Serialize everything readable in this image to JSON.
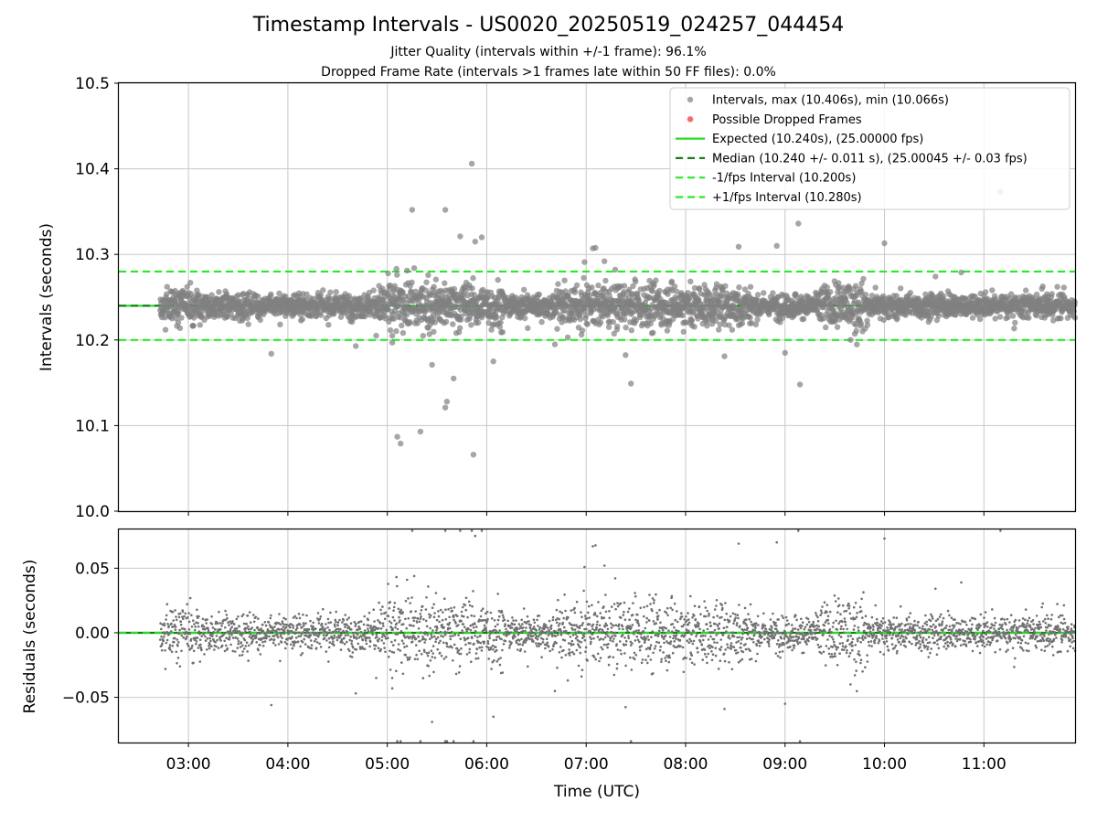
{
  "title": "Timestamp Intervals - US0020_20250519_024257_044454",
  "subtitle_1": "Jitter Quality (intervals within +/-1 frame): 96.1%",
  "subtitle_2": "Dropped Frame Rate (intervals >1 frames late within 50 FF files): 0.0%",
  "colors": {
    "points": "#808080",
    "residual_points": "#707070",
    "dropped": "#ff4d4d",
    "expected": "#22dd22",
    "median": "#1a7a1a",
    "interval_band": "#22ee22",
    "grid": "#c8c8c8"
  },
  "chart_data": [
    {
      "type": "scatter",
      "panel": "intervals",
      "xlabel": "",
      "ylabel": "Intervals (seconds)",
      "xlim": [
        "02:18",
        "11:55"
      ],
      "ylim": [
        10.0,
        10.5
      ],
      "yticks": [
        "10.0",
        "10.1",
        "10.2",
        "10.3",
        "10.4",
        "10.5"
      ],
      "grid": true,
      "legend_position": "top-right",
      "legend": [
        {
          "label": "Intervals, max (10.406s), min (10.066s)",
          "marker": "point"
        },
        {
          "label": "Possible Dropped Frames",
          "marker": "dropped"
        },
        {
          "label": "Expected (10.240s), (25.00000 fps)",
          "marker": "solid"
        },
        {
          "label": "Median (10.240 +/- 0.011 s), (25.00045 +/- 0.03 fps)",
          "marker": "dashed-dark"
        },
        {
          "label": "-1/fps Interval (10.200s)",
          "marker": "dashed"
        },
        {
          "label": "+1/fps Interval (10.280s)",
          "marker": "dashed"
        }
      ],
      "reference_lines": {
        "expected": 10.24,
        "median": 10.24,
        "minus_1fps": 10.2,
        "plus_1fps": 10.28
      },
      "x_start": "02:43",
      "x_end": "11:55",
      "n_points": 3200,
      "typical_spread": 0.011,
      "x": [
        "05:06",
        "05:08",
        "05:20",
        "05:52",
        "05:40",
        "05:36",
        "05:35",
        "05:35",
        "05:27",
        "05:15",
        "06:04",
        "05:51",
        "09:08",
        "11:10",
        "10:00",
        "09:09",
        "05:03",
        "05:03",
        "07:11",
        "04:41",
        "03:50",
        "06:59",
        "05:44",
        "05:53",
        "07:27",
        "08:55",
        "09:00",
        "08:32",
        "07:04",
        "05:57"
      ],
      "y": [
        10.087,
        10.079,
        10.093,
        10.066,
        10.155,
        10.128,
        10.121,
        10.352,
        10.171,
        10.352,
        10.175,
        10.406,
        10.336,
        10.373,
        10.313,
        10.148,
        10.205,
        10.197,
        10.292,
        10.193,
        10.184,
        10.291,
        10.321,
        10.315,
        10.149,
        10.31,
        10.185,
        10.309,
        10.307,
        10.32
      ]
    },
    {
      "type": "scatter",
      "panel": "residuals",
      "xlabel": "Time (UTC)",
      "ylabel": "Residuals (seconds)",
      "xlim": [
        "02:18",
        "11:55"
      ],
      "ylim": [
        -0.085,
        0.08
      ],
      "yticks": [
        "−0.05",
        "0.00",
        "0.05"
      ],
      "xticks": [
        "03:00",
        "04:00",
        "05:00",
        "06:00",
        "07:00",
        "08:00",
        "09:00",
        "10:00",
        "11:00"
      ],
      "grid": true,
      "reference_lines": {
        "expected": 0.0,
        "median": 0.0
      }
    }
  ]
}
